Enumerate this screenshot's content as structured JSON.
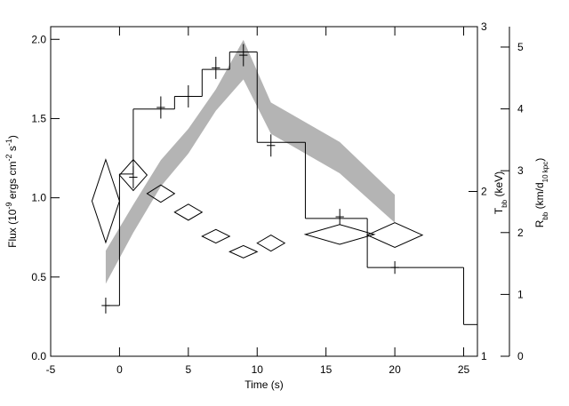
{
  "chart_data": {
    "type": "combo",
    "xlabel": [
      {
        "text": "Time (s)",
        "shift": "none"
      }
    ],
    "ylabel": [
      {
        "text": "Flux (10",
        "shift": "none"
      },
      {
        "text": "-9",
        "shift": "super"
      },
      {
        "text": " ergs cm",
        "shift": "none"
      },
      {
        "text": "-2",
        "shift": "super"
      },
      {
        "text": " s",
        "shift": "none"
      },
      {
        "text": "-1",
        "shift": "super"
      },
      {
        "text": ")",
        "shift": "none"
      }
    ],
    "y2label": [
      {
        "text": "T",
        "shift": "none"
      },
      {
        "text": "bb",
        "shift": "sub"
      },
      {
        "text": " (keV)",
        "shift": "none"
      }
    ],
    "y3label": [
      {
        "text": "R",
        "shift": "none"
      },
      {
        "text": "bb",
        "shift": "sub"
      },
      {
        "text": " (km/d",
        "shift": "none"
      },
      {
        "text": "10 kpc",
        "shift": "sub"
      },
      {
        "text": ")",
        "shift": "none"
      }
    ],
    "xlim": [
      -5,
      26
    ],
    "xticks": [
      -5,
      0,
      5,
      10,
      15,
      20,
      25
    ],
    "ylim": [
      0,
      2.08
    ],
    "yticks": [
      {
        "value": 0,
        "label": "0.0"
      },
      0.5,
      {
        "value": 1,
        "label": "1.0"
      },
      1.5,
      {
        "value": 2,
        "label": "2.0"
      }
    ],
    "y2lim": [
      1,
      3
    ],
    "y2ticks": [
      1,
      2,
      3
    ],
    "y3lim": [
      0,
      5.33
    ],
    "y3ticks": [
      0,
      1,
      2,
      3,
      4,
      5
    ],
    "layers": [
      {
        "type": "band",
        "axis": "y2",
        "color": "#b4b4b4",
        "x": [
          -1,
          1,
          3,
          5,
          7,
          9,
          11,
          16,
          20
        ],
        "upper": [
          1.64,
          1.92,
          2.19,
          2.38,
          2.62,
          2.92,
          2.54,
          2.3,
          1.98
        ],
        "lower": [
          1.44,
          1.75,
          2.03,
          2.23,
          2.49,
          2.68,
          2.35,
          2.11,
          1.81
        ]
      },
      {
        "type": "step",
        "axis": "y",
        "color": "#000000",
        "bins": [
          -1,
          0,
          1,
          4,
          6,
          8,
          10,
          13.5,
          18,
          25,
          26
        ],
        "values": [
          0.32,
          1.15,
          1.56,
          1.64,
          1.81,
          1.92,
          1.35,
          0.87,
          0.56,
          0.2
        ]
      },
      {
        "type": "errorbar",
        "axis": "y",
        "color": "#000000",
        "x": [
          -1,
          1,
          3,
          5,
          7,
          9,
          11,
          16,
          20
        ],
        "values": [
          0.32,
          1.13,
          1.57,
          1.64,
          1.82,
          1.9,
          1.33,
          0.88,
          0.56
        ],
        "yerr": [
          0.05,
          0.07,
          0.07,
          0.07,
          0.07,
          0.07,
          0.07,
          0.05,
          0.04
        ],
        "xerr": [
          0.3,
          0.3,
          0.3,
          0.3,
          0.3,
          0.3,
          0.3,
          0.3,
          0.3
        ]
      },
      {
        "type": "diamond",
        "axis": "y3",
        "color": "#000000",
        "x": [
          -1,
          1,
          3,
          5,
          7,
          9,
          11,
          16,
          20
        ],
        "values": [
          2.51,
          2.93,
          2.63,
          2.33,
          1.94,
          1.69,
          1.83,
          1.97,
          1.96
        ],
        "xerr": [
          1,
          1,
          1,
          1,
          1,
          1,
          1,
          2.5,
          2
        ],
        "yerr": [
          0.67,
          0.25,
          0.14,
          0.13,
          0.11,
          0.1,
          0.13,
          0.16,
          0.2
        ]
      }
    ]
  }
}
